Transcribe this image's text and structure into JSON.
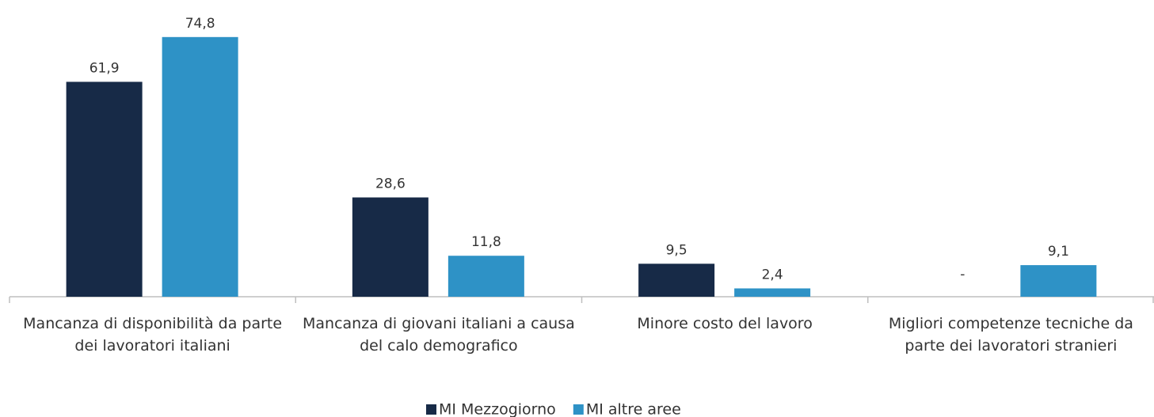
{
  "chart_data": {
    "type": "bar",
    "categories": [
      "Mancanza di disponibilità da parte dei lavoratori italiani",
      "Mancanza di giovani italiani a causa del calo demografico",
      "Minore costo del lavoro",
      "Migliori competenze tecniche da parte dei lavoratori stranieri"
    ],
    "series": [
      {
        "name": "MI Mezzogiorno",
        "color": "#172a47",
        "values": [
          61.9,
          28.6,
          9.5,
          null
        ],
        "value_labels": [
          "61,9",
          "28,6",
          "9,5",
          "-"
        ]
      },
      {
        "name": "MI altre aree",
        "color": "#2e92c6",
        "values": [
          74.8,
          11.8,
          2.4,
          9.1
        ],
        "value_labels": [
          "74,8",
          "11,8",
          "2,4",
          "9,1"
        ]
      }
    ],
    "ylim": [
      0,
      80
    ],
    "grid": false,
    "legend": "bottom"
  }
}
